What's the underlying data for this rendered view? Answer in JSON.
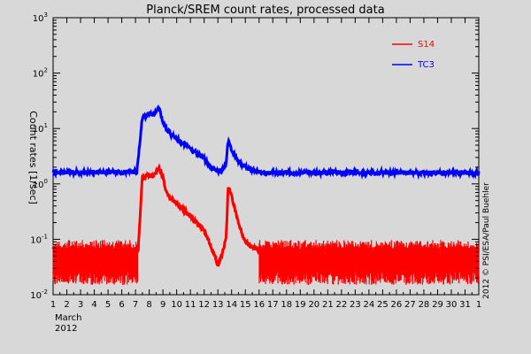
{
  "chart_data": {
    "type": "line",
    "title": "Planck/SREM count rates, processed data",
    "xlabel": "March",
    "xlabel_year": "2012",
    "ylabel": "Count rates [1/sec]",
    "yscale": "log",
    "ylim": [
      0.01,
      1000
    ],
    "y_ticks": [
      {
        "value": 0.01,
        "base": "10",
        "exp": "-2"
      },
      {
        "value": 0.1,
        "base": "10",
        "exp": "-1"
      },
      {
        "value": 1,
        "base": "10",
        "exp": "0"
      },
      {
        "value": 10,
        "base": "10",
        "exp": "1"
      },
      {
        "value": 100,
        "base": "10",
        "exp": "2"
      },
      {
        "value": 1000,
        "base": "10",
        "exp": "3"
      }
    ],
    "xlim": [
      1,
      32
    ],
    "x_ticks": [
      {
        "value": 1,
        "label": "1"
      },
      {
        "value": 2,
        "label": "2"
      },
      {
        "value": 3,
        "label": "3"
      },
      {
        "value": 4,
        "label": "4"
      },
      {
        "value": 5,
        "label": "5"
      },
      {
        "value": 6,
        "label": "6"
      },
      {
        "value": 7,
        "label": "7"
      },
      {
        "value": 8,
        "label": "8"
      },
      {
        "value": 9,
        "label": "9"
      },
      {
        "value": 10,
        "label": "10"
      },
      {
        "value": 11,
        "label": "11"
      },
      {
        "value": 12,
        "label": "12"
      },
      {
        "value": 13,
        "label": "13"
      },
      {
        "value": 14,
        "label": "14"
      },
      {
        "value": 15,
        "label": "15"
      },
      {
        "value": 16,
        "label": "16"
      },
      {
        "value": 17,
        "label": "17"
      },
      {
        "value": 18,
        "label": "18"
      },
      {
        "value": 19,
        "label": "19"
      },
      {
        "value": 20,
        "label": "20"
      },
      {
        "value": 21,
        "label": "21"
      },
      {
        "value": 22,
        "label": "22"
      },
      {
        "value": 23,
        "label": "23"
      },
      {
        "value": 24,
        "label": "24"
      },
      {
        "value": 25,
        "label": "25"
      },
      {
        "value": 26,
        "label": "26"
      },
      {
        "value": 27,
        "label": "27"
      },
      {
        "value": 28,
        "label": "28"
      },
      {
        "value": 29,
        "label": "29"
      },
      {
        "value": 30,
        "label": "30"
      },
      {
        "value": 31,
        "label": "31"
      },
      {
        "value": 32,
        "label": "1"
      }
    ],
    "legend_position": "top-right",
    "series": [
      {
        "name": "S14",
        "color": "#ff0000",
        "x": [
          1,
          7.2,
          7.5,
          8.3,
          8.7,
          9.0,
          9.3,
          10,
          11,
          12,
          12.3,
          12.7,
          13.0,
          13.2,
          13.6,
          13.75,
          14.0,
          14.5,
          15,
          15.5,
          16,
          16.5,
          32
        ],
        "values": [
          0.065,
          0.065,
          1.35,
          1.45,
          2.0,
          1.3,
          0.65,
          0.45,
          0.26,
          0.14,
          0.1,
          0.055,
          0.035,
          0.045,
          0.1,
          0.9,
          0.6,
          0.2,
          0.09,
          0.07,
          0.065,
          0.065,
          0.065
        ],
        "noise_floor": 0.015
      },
      {
        "name": "TC3",
        "color": "#0000ff",
        "x": [
          1,
          7.1,
          7.5,
          8.3,
          8.7,
          9.0,
          9.3,
          10,
          11,
          12,
          12.5,
          13.0,
          13.3,
          13.6,
          13.75,
          14.0,
          14.5,
          15,
          15.5,
          16,
          16.5,
          32
        ],
        "values": [
          1.6,
          1.65,
          16,
          18,
          24,
          13,
          9.5,
          6.5,
          4.3,
          2.9,
          1.9,
          1.7,
          1.75,
          2.2,
          6.0,
          4.0,
          2.6,
          2.0,
          1.75,
          1.65,
          1.6,
          1.6
        ]
      }
    ],
    "annotation": "2012 © PSI/ESA/Paul Buehler"
  }
}
